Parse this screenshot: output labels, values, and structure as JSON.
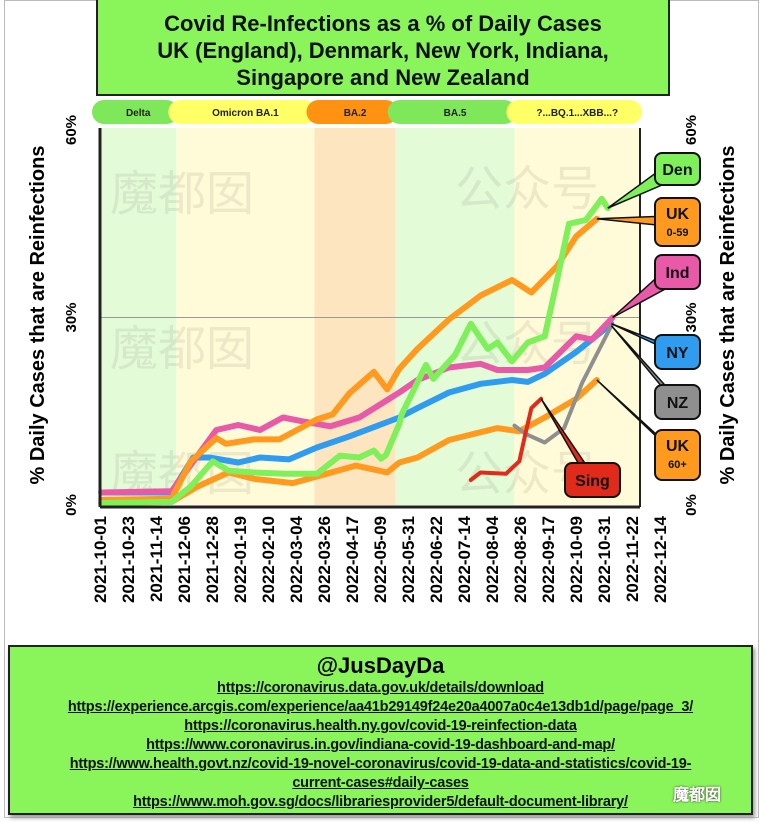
{
  "title": [
    "Covid Re-Infections as a % of Daily Cases",
    "UK (England), Denmark, New York, Indiana,",
    "Singapore and New Zealand"
  ],
  "credits": {
    "handle": "@JusDayDa",
    "urls": [
      "https://coronavirus.data.gov.uk/details/download",
      "https://experience.arcgis.com/experience/aa41b29149f24e20a4007a0c4e13db1d/page/page_3/",
      "https://coronavirus.health.ny.gov/covid-19-reinfection-data",
      "https://www.coronavirus.in.gov/indiana-covid-19-dashboard-and-map/",
      "https://www.health.govt.nz/covid-19-novel-coronavirus/covid-19-data-and-statistics/covid-19-",
      "current-cases#daily-cases",
      "https://www.moh.gov.sg/docs/librariesprovider5/default-document-library/"
    ]
  },
  "watermark": {
    "text_a": "魔都囡",
    "text_b": "公众号",
    "badge": "魔都囡"
  },
  "chart_data": {
    "type": "line",
    "title": "Covid Re-Infections as a % of Daily Cases UK (England), Denmark, New York, Indiana, Singapore and New Zealand",
    "ylabel": "% Daily Cases that are Reinfections",
    "xlabel": "",
    "ylim": [
      0,
      60
    ],
    "y_ticks": [
      "0%",
      "30%",
      "60%"
    ],
    "y_tick_values": [
      0,
      30,
      60
    ],
    "grid": "horizontal line at 30%",
    "x_range": [
      "2021-10-01",
      "2022-12-14"
    ],
    "x_ticks": [
      "2021-10-01",
      "2021-10-23",
      "2021-11-14",
      "2021-12-06",
      "2021-12-28",
      "2022-01-19",
      "2022-02-10",
      "2022-03-04",
      "2022-03-26",
      "2022-04-17",
      "2022-05-09",
      "2022-05-31",
      "2022-06-22",
      "2022-07-14",
      "2022-08-04",
      "2022-08-26",
      "2022-09-17",
      "2022-10-09",
      "2022-10-31",
      "2022-11-22",
      "2022-12-14"
    ],
    "variant_bands": [
      {
        "label": "Delta",
        "start": "2021-10-01",
        "end": "2021-12-03",
        "color": "#7fe85a",
        "fill": "#e4fbd8"
      },
      {
        "label": "Omicron BA.1",
        "start": "2021-12-03",
        "end": "2022-03-27",
        "color": "#ffff66",
        "fill": "#fffbd8"
      },
      {
        "label": "BA.2",
        "start": "2022-03-27",
        "end": "2022-06-02",
        "color": "#ff9210",
        "fill": "#fde6bf"
      },
      {
        "label": "BA.5",
        "start": "2022-06-02",
        "end": "2022-09-08",
        "color": "#7fe85a",
        "fill": "#e4fbd8"
      },
      {
        "label": "?...BQ.1...XBB...?",
        "start": "2022-09-08",
        "end": "2022-12-14",
        "color": "#ffff66",
        "fill": "#fffbd8"
      }
    ],
    "series": [
      {
        "name": "Den",
        "sub": "",
        "color": "#7ef05a",
        "points": [
          [
            "2021-10-02",
            0.3
          ],
          [
            "2021-11-29",
            0.5
          ],
          [
            "2021-12-15",
            3
          ],
          [
            "2022-01-02",
            7
          ],
          [
            "2022-01-15",
            5.5
          ],
          [
            "2022-02-05",
            5.2
          ],
          [
            "2022-03-03",
            5
          ],
          [
            "2022-03-29",
            5
          ],
          [
            "2022-04-17",
            7.9
          ],
          [
            "2022-05-03",
            7.6
          ],
          [
            "2022-05-15",
            8.7
          ],
          [
            "2022-05-21",
            7.4
          ],
          [
            "2022-05-25",
            8
          ],
          [
            "2022-06-05",
            13
          ],
          [
            "2022-06-07",
            14.5
          ],
          [
            "2022-06-27",
            22.4
          ],
          [
            "2022-07-03",
            20.2
          ],
          [
            "2022-07-21",
            24
          ],
          [
            "2022-08-03",
            29
          ],
          [
            "2022-08-17",
            25
          ],
          [
            "2022-08-25",
            26
          ],
          [
            "2022-09-06",
            23
          ],
          [
            "2022-09-19",
            26
          ],
          [
            "2022-10-03",
            27
          ],
          [
            "2022-10-11",
            34
          ],
          [
            "2022-10-23",
            45
          ],
          [
            "2022-11-06",
            45.6
          ],
          [
            "2022-11-19",
            49
          ],
          [
            "2022-11-24",
            47.5
          ]
        ]
      },
      {
        "name": "UK",
        "sub": "0-59",
        "color": "#ff9a1f",
        "points": [
          [
            "2021-10-02",
            0.8
          ],
          [
            "2021-11-29",
            1
          ],
          [
            "2021-12-15",
            7
          ],
          [
            "2022-01-05",
            10.7
          ],
          [
            "2022-01-13",
            9.8
          ],
          [
            "2022-02-05",
            10.5
          ],
          [
            "2022-02-26",
            10.5
          ],
          [
            "2022-03-29",
            13.7
          ],
          [
            "2022-04-11",
            14.5
          ],
          [
            "2022-04-25",
            17.9
          ],
          [
            "2022-05-15",
            21.3
          ],
          [
            "2022-05-26",
            18.5
          ],
          [
            "2022-06-05",
            21.8
          ],
          [
            "2022-06-20",
            25
          ],
          [
            "2022-07-16",
            29.7
          ],
          [
            "2022-08-11",
            33.5
          ],
          [
            "2022-09-06",
            36
          ],
          [
            "2022-09-22",
            34
          ],
          [
            "2022-10-13",
            38.2
          ],
          [
            "2022-10-29",
            43
          ],
          [
            "2022-11-15",
            45.8
          ]
        ]
      },
      {
        "name": "Ind",
        "sub": "",
        "color": "#e85aa8",
        "points": [
          [
            "2021-10-02",
            2
          ],
          [
            "2021-11-29",
            2.2
          ],
          [
            "2022-01-05",
            12
          ],
          [
            "2022-01-23",
            12.8
          ],
          [
            "2022-02-10",
            12
          ],
          [
            "2022-03-01",
            14
          ],
          [
            "2022-03-17",
            13.4
          ],
          [
            "2022-04-09",
            12.6
          ],
          [
            "2022-05-03",
            14
          ],
          [
            "2022-06-05",
            18
          ],
          [
            "2022-06-20",
            20
          ],
          [
            "2022-07-16",
            22
          ],
          [
            "2022-08-11",
            22.6
          ],
          [
            "2022-08-25",
            21.6
          ],
          [
            "2022-09-19",
            21.6
          ],
          [
            "2022-10-03",
            22
          ],
          [
            "2022-10-29",
            27
          ],
          [
            "2022-11-11",
            26.5
          ],
          [
            "2022-11-28",
            30
          ]
        ]
      },
      {
        "name": "NY",
        "sub": "",
        "color": "#2f9cf0",
        "points": [
          [
            "2021-10-02",
            2
          ],
          [
            "2021-11-29",
            2
          ],
          [
            "2021-12-17",
            7.6
          ],
          [
            "2021-12-30",
            7.6
          ],
          [
            "2022-01-23",
            6.8
          ],
          [
            "2022-02-10",
            7.6
          ],
          [
            "2022-03-06",
            7.3
          ],
          [
            "2022-03-29",
            9.2
          ],
          [
            "2022-04-25",
            11
          ],
          [
            "2022-06-05",
            14
          ],
          [
            "2022-06-20",
            15.5
          ],
          [
            "2022-07-16",
            18
          ],
          [
            "2022-08-11",
            19.4
          ],
          [
            "2022-09-06",
            20
          ],
          [
            "2022-09-19",
            19.7
          ],
          [
            "2022-10-03",
            21
          ],
          [
            "2022-10-29",
            24.5
          ],
          [
            "2022-11-27",
            29
          ]
        ]
      },
      {
        "name": "NZ",
        "sub": "",
        "color": "#8f8f8f",
        "points": [
          [
            "2022-09-08",
            12.7
          ],
          [
            "2022-09-17",
            11.4
          ],
          [
            "2022-10-03",
            10
          ],
          [
            "2022-10-19",
            12.3
          ],
          [
            "2022-11-03",
            19.6
          ],
          [
            "2022-11-27",
            28.7
          ]
        ]
      },
      {
        "name": "UK",
        "sub": "60+",
        "color": "#ff9a1f",
        "points": [
          [
            "2021-10-02",
            0.3
          ],
          [
            "2021-11-29",
            0.5
          ],
          [
            "2021-12-20",
            2.9
          ],
          [
            "2022-01-15",
            5.2
          ],
          [
            "2022-02-05",
            4.2
          ],
          [
            "2022-03-09",
            3.5
          ],
          [
            "2022-04-06",
            5
          ],
          [
            "2022-04-30",
            6.3
          ],
          [
            "2022-05-26",
            5.2
          ],
          [
            "2022-06-05",
            6.8
          ],
          [
            "2022-06-20",
            7.6
          ],
          [
            "2022-07-16",
            10.4
          ],
          [
            "2022-08-25",
            12.3
          ],
          [
            "2022-09-12",
            11.8
          ],
          [
            "2022-10-03",
            14
          ],
          [
            "2022-10-29",
            17
          ],
          [
            "2022-11-15",
            20
          ]
        ]
      },
      {
        "name": "Sing",
        "sub": "",
        "color": "#e02a1a",
        "points": [
          [
            "2022-08-03",
            4
          ],
          [
            "2022-08-11",
            5.2
          ],
          [
            "2022-09-01",
            5
          ],
          [
            "2022-09-12",
            7
          ],
          [
            "2022-09-17",
            11.4
          ],
          [
            "2022-09-22",
            15.5
          ],
          [
            "2022-09-30",
            17
          ]
        ]
      }
    ]
  }
}
